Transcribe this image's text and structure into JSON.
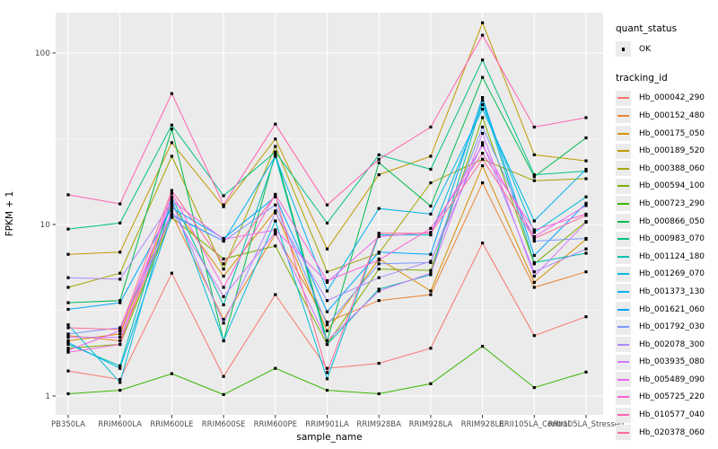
{
  "chart_data": {
    "type": "line",
    "title": "",
    "xlabel": "sample_name",
    "ylabel": "FPKM + 1",
    "y_scale": "log10",
    "y_ticks": [
      1,
      10,
      100
    ],
    "y_minor_ticks": [
      3.162,
      31.62
    ],
    "ylim": [
      0.78,
      175
    ],
    "grid": "on",
    "panel_bg": "#ebebeb",
    "grid_color": "#ffffff",
    "tick_label_color": "#4d4d4d",
    "point_color": "#000000",
    "categories": [
      "PB350LA",
      "RRIM600LA",
      "RRIM600LE",
      "RRIM600SE",
      "RRIM600PE",
      "RRIM901LA",
      "RRIM928BA",
      "RRIM928LA",
      "RRIM928LE",
      "RRII105LA_Control",
      "RRII105LA_Stressed"
    ],
    "series": [
      {
        "name": "Hb_000042_290",
        "color": "#F8766D",
        "values": [
          1.4,
          1.25,
          5.2,
          1.3,
          3.9,
          1.45,
          1.55,
          1.9,
          7.8,
          2.25,
          2.9
        ]
      },
      {
        "name": "Hb_000152_480",
        "color": "#EA8331",
        "values": [
          2.25,
          2.1,
          11.5,
          2.8,
          8.8,
          2.7,
          3.6,
          3.9,
          17.5,
          4.3,
          5.3
        ]
      },
      {
        "name": "Hb_000175_050",
        "color": "#D89000",
        "values": [
          2.1,
          2.3,
          13,
          5.0,
          12,
          2.4,
          6.3,
          4.1,
          22,
          4.6,
          8.2
        ]
      },
      {
        "name": "Hb_000189_520",
        "color": "#C09B00",
        "values": [
          6.7,
          6.9,
          30,
          12.7,
          31.5,
          7.2,
          19.5,
          25,
          150,
          25.5,
          23.5
        ]
      },
      {
        "name": "Hb_000388_060",
        "color": "#A3A500",
        "values": [
          4.3,
          5.2,
          25,
          5.5,
          28.5,
          5.3,
          6.8,
          17.5,
          24,
          18,
          18.5
        ]
      },
      {
        "name": "Hb_000594_100",
        "color": "#7CAE00",
        "values": [
          1.9,
          2.0,
          11,
          6.3,
          7.5,
          2.0,
          5.5,
          5.4,
          42,
          5.9,
          10.4
        ]
      },
      {
        "name": "Hb_000723_290",
        "color": "#39B600",
        "values": [
          1.03,
          1.08,
          1.35,
          1.02,
          1.45,
          1.08,
          1.03,
          1.18,
          1.95,
          1.12,
          1.38
        ]
      },
      {
        "name": "Hb_000866_050",
        "color": "#00BB4E",
        "values": [
          3.5,
          3.6,
          36,
          2.1,
          26,
          2.1,
          22.9,
          12.8,
          72,
          19,
          32
        ]
      },
      {
        "name": "Hb_000983_070",
        "color": "#00C087",
        "values": [
          9.4,
          10.2,
          38,
          14.7,
          26.5,
          10.2,
          25.5,
          21,
          91,
          19.5,
          20.5
        ]
      },
      {
        "name": "Hb_001124_180",
        "color": "#00C0AF",
        "values": [
          2.0,
          1.5,
          14.5,
          3.4,
          25,
          2.0,
          4.2,
          5.1,
          53,
          6.0,
          6.8
        ]
      },
      {
        "name": "Hb_001269_070",
        "color": "#00BCD8",
        "values": [
          2.6,
          1.2,
          14,
          2.1,
          10.5,
          1.26,
          8.7,
          8.7,
          50,
          9.0,
          14.5
        ]
      },
      {
        "name": "Hb_001373_130",
        "color": "#00B4EF",
        "values": [
          2.05,
          1.45,
          11.3,
          8.0,
          25,
          4.1,
          12.4,
          11.5,
          47,
          10.5,
          21
        ]
      },
      {
        "name": "Hb_001621_060",
        "color": "#00A5FF",
        "values": [
          3.2,
          3.5,
          12.5,
          8.3,
          14.5,
          3.1,
          6.9,
          6.7,
          55,
          6.6,
          13.3
        ]
      },
      {
        "name": "Hb_001792_030",
        "color": "#7997FF",
        "values": [
          2.3,
          2.5,
          11.5,
          8.0,
          13,
          2.6,
          5.9,
          6.0,
          37,
          8.0,
          8.3
        ]
      },
      {
        "name": "Hb_002078_300",
        "color": "#AC88FF",
        "values": [
          4.9,
          4.8,
          13.5,
          2.66,
          11.7,
          3.6,
          4.9,
          6.1,
          30,
          5.3,
          7.2
        ]
      },
      {
        "name": "Hb_003935_080",
        "color": "#D277FF",
        "values": [
          2.2,
          2.2,
          12,
          3.8,
          9.0,
          2.1,
          4.1,
          5.2,
          34,
          5.0,
          10.3
        ]
      },
      {
        "name": "Hb_005489_090",
        "color": "#EC67F0",
        "values": [
          1.85,
          2.4,
          13.8,
          8.2,
          9.3,
          4.6,
          8.5,
          9.0,
          29,
          8.5,
          12.9
        ]
      },
      {
        "name": "Hb_005725_220",
        "color": "#FC61D5",
        "values": [
          1.8,
          2.0,
          15.2,
          4.3,
          15,
          4.7,
          6.2,
          9.5,
          26,
          9.3,
          11.5
        ]
      },
      {
        "name": "Hb_010577_040",
        "color": "#FF62B0",
        "values": [
          14.9,
          13.2,
          58,
          13,
          38.5,
          13,
          24,
          37,
          127,
          37,
          42
        ]
      },
      {
        "name": "Hb_020378_060",
        "color": "#FF6A98",
        "values": [
          2.5,
          2.44,
          15.8,
          5.9,
          14.8,
          1.37,
          8.9,
          8.9,
          24,
          8.3,
          11.3
        ]
      }
    ],
    "legend": {
      "position": "right",
      "quant_status_title": "quant_status",
      "quant_status_items": [
        "OK"
      ],
      "tracking_title": "tracking_id"
    }
  }
}
